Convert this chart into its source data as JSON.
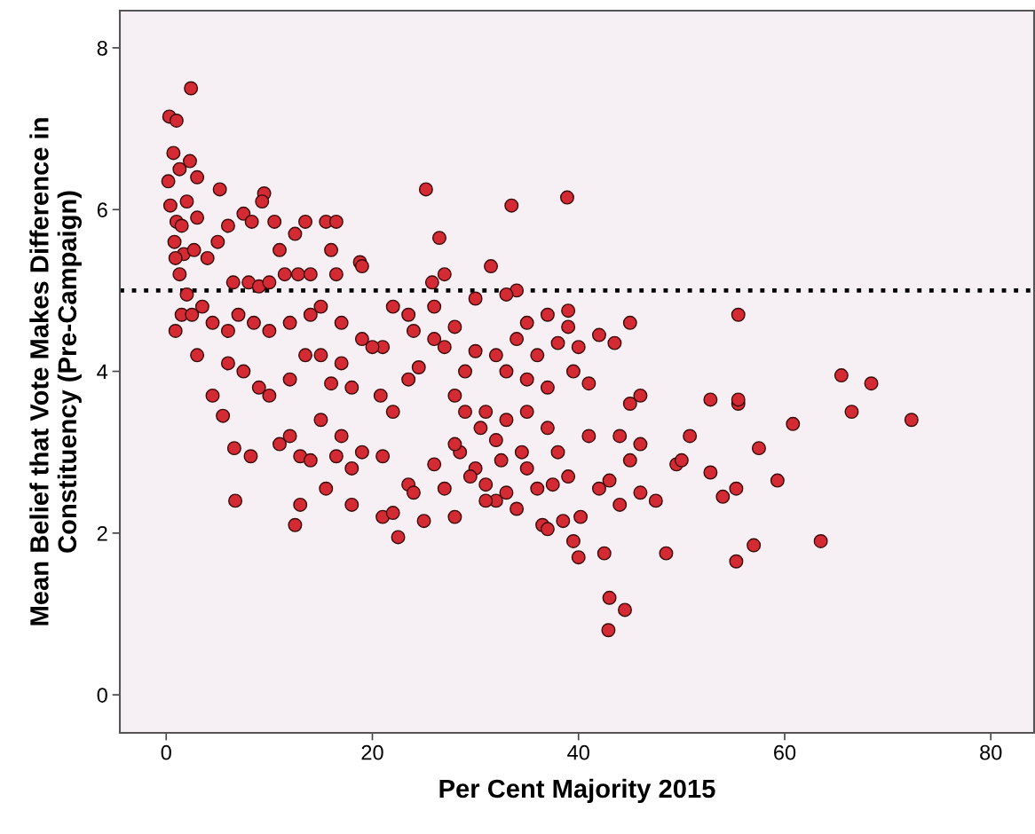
{
  "chart_data": {
    "type": "scatter",
    "xlabel": "Per Cent Majority 2015",
    "ylabel": "Mean Belief that Vote Makes Difference in\nConstituency (Pre-Campaign)",
    "xlim": [
      -4.5,
      84.2
    ],
    "ylim": [
      -0.47,
      8.46
    ],
    "xticks": [
      0,
      20,
      40,
      60,
      80
    ],
    "yticks": [
      0,
      2,
      4,
      6,
      8
    ],
    "grid": false,
    "marker": "circle",
    "ref_lines": [
      {
        "axis": "y",
        "value": 5,
        "color": "#000000",
        "line_style": "dotted"
      }
    ],
    "series": [
      {
        "color": "#d42a33",
        "x": [
          0.3,
          1,
          2.4,
          0.7,
          1.3,
          0.2,
          2.3,
          0.4,
          3,
          5.2,
          9.5,
          9.3,
          2,
          1,
          1.5,
          0.8,
          1.7,
          2.7,
          3,
          5,
          6,
          7.5,
          8.3,
          10.5,
          12.5,
          13.5,
          15.5,
          16.5,
          11,
          16,
          18.8,
          0.9,
          1.3,
          4,
          6.5,
          8,
          9,
          10,
          11.5,
          12.8,
          14,
          16.5,
          19,
          2,
          0.9,
          1.5,
          2.5,
          3.5,
          4.5,
          6,
          7,
          8.5,
          10,
          12,
          14,
          15,
          17,
          19,
          21,
          22,
          23.5,
          24,
          26,
          27,
          26.5,
          25.2,
          25.8,
          28,
          30,
          31.5,
          33.5,
          38.9,
          34,
          33,
          35,
          37,
          39,
          39,
          45,
          55.5,
          3,
          4.5,
          5.5,
          6,
          7.5,
          9,
          10,
          12,
          13.5,
          15,
          16,
          17,
          18,
          20,
          20.8,
          22,
          23.5,
          24.5,
          26,
          27,
          28,
          29,
          30,
          31,
          32,
          33,
          34,
          35,
          36,
          37,
          38,
          39.5,
          40,
          41,
          42,
          43.5,
          45,
          46,
          6.6,
          8.2,
          6.7,
          11,
          12,
          13,
          14,
          15,
          15.5,
          16.5,
          17,
          18,
          18,
          19,
          21,
          21,
          22,
          22.5,
          23.5,
          24,
          25,
          26,
          27,
          28,
          28.5,
          29,
          30,
          30.5,
          31,
          32,
          32.5,
          33,
          34,
          34.5,
          35,
          36,
          36.5,
          37,
          37.5,
          38,
          38.5,
          39,
          39.5,
          40,
          40.2,
          41,
          42,
          42.5,
          43,
          44,
          43,
          44.5,
          42.9,
          44,
          45,
          46,
          46,
          47.5,
          48.5,
          49.5,
          50,
          50.8,
          52.8,
          52.8,
          54,
          55.5,
          55.5,
          55.3,
          55.3,
          57,
          57.5,
          59.3,
          60.8,
          63.5,
          65.5,
          66.5,
          68.4,
          72.3,
          12.5,
          13,
          33,
          31,
          29.5,
          37,
          35,
          32,
          28
        ],
        "values": [
          7.15,
          7.1,
          7.5,
          6.7,
          6.5,
          6.35,
          6.6,
          6.05,
          6.4,
          6.25,
          6.2,
          6.1,
          6.1,
          5.85,
          5.8,
          5.6,
          5.45,
          5.5,
          5.9,
          5.6,
          5.8,
          5.95,
          5.85,
          5.85,
          5.7,
          5.85,
          5.85,
          5.85,
          5.5,
          5.5,
          5.35,
          5.4,
          5.2,
          5.4,
          5.1,
          5.1,
          5.05,
          5.1,
          5.2,
          5.2,
          5.2,
          5.2,
          5.3,
          4.95,
          4.5,
          4.7,
          4.7,
          4.8,
          4.6,
          4.5,
          4.7,
          4.6,
          4.5,
          4.6,
          4.7,
          4.8,
          4.6,
          4.4,
          4.3,
          4.8,
          4.7,
          4.5,
          4.8,
          5.2,
          5.65,
          6.25,
          5.1,
          4.55,
          4.9,
          5.3,
          6.05,
          6.15,
          5,
          4.95,
          4.6,
          4.7,
          4.75,
          4.55,
          4.6,
          4.7,
          4.2,
          3.7,
          3.45,
          4.1,
          4,
          3.8,
          3.7,
          3.9,
          4.2,
          4.2,
          3.85,
          4.1,
          3.8,
          4.3,
          3.7,
          3.5,
          3.9,
          4.05,
          4.4,
          4.3,
          3.7,
          4,
          4.25,
          3.5,
          4.2,
          4,
          4.4,
          3.9,
          4.2,
          3.8,
          4.35,
          4,
          4.3,
          3.85,
          4.45,
          4.35,
          3.6,
          3.7,
          3.05,
          2.95,
          2.4,
          3.1,
          3.2,
          2.95,
          2.9,
          3.4,
          2.55,
          2.95,
          3.2,
          2.8,
          2.35,
          3,
          2.95,
          2.2,
          2.25,
          1.95,
          2.6,
          2.5,
          2.15,
          2.85,
          2.55,
          2.2,
          3,
          3.5,
          2.8,
          3.3,
          2.6,
          2.4,
          2.9,
          3.4,
          2.3,
          3,
          2.8,
          2.55,
          2.1,
          2.05,
          2.6,
          3,
          2.15,
          2.7,
          1.9,
          1.7,
          2.2,
          3.2,
          2.55,
          1.75,
          2.65,
          2.35,
          1.2,
          1.05,
          0.8,
          3.2,
          2.9,
          3.1,
          2.5,
          2.4,
          1.75,
          2.85,
          2.9,
          3.2,
          2.75,
          3.65,
          2.45,
          3.6,
          3.65,
          2.55,
          1.65,
          1.85,
          3.05,
          2.65,
          3.35,
          1.9,
          3.95,
          3.5,
          3.85,
          3.4,
          2.1,
          2.35,
          2.5,
          2.4,
          2.7,
          3.3,
          3.5,
          3.15,
          3.1
        ]
      }
    ]
  }
}
